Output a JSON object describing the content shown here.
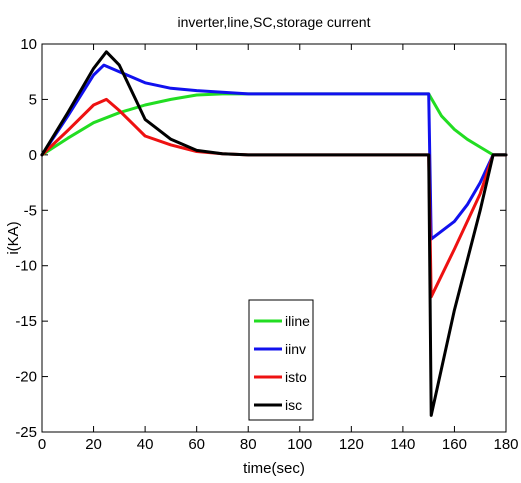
{
  "chart_data": {
    "type": "line",
    "title": "inverter,line,SC,storage current",
    "xlabel": "time(sec)",
    "ylabel": "i(KA)",
    "xlim": [
      0,
      180
    ],
    "ylim": [
      -25,
      10
    ],
    "xticks": [
      0,
      20,
      40,
      60,
      80,
      100,
      120,
      140,
      160,
      180
    ],
    "yticks": [
      10,
      5,
      0,
      -5,
      -10,
      -15,
      -20,
      -25
    ],
    "grid": false,
    "legend_position": "lower-center",
    "series": [
      {
        "name": "iline",
        "color": "#22dd22",
        "x": [
          0,
          10,
          20,
          30,
          40,
          50,
          60,
          70,
          80,
          100,
          120,
          140,
          150,
          155,
          160,
          165,
          170,
          175,
          180
        ],
        "y": [
          0,
          1.5,
          2.9,
          3.8,
          4.5,
          5.0,
          5.4,
          5.5,
          5.5,
          5.5,
          5.5,
          5.5,
          5.5,
          3.5,
          2.3,
          1.4,
          0.7,
          0,
          0
        ]
      },
      {
        "name": "iinv",
        "color": "#1111ee",
        "x": [
          0,
          10,
          20,
          24,
          30,
          40,
          50,
          60,
          80,
          100,
          120,
          140,
          150,
          151,
          160,
          165,
          170,
          175,
          180
        ],
        "y": [
          0,
          3.5,
          7.2,
          8.1,
          7.5,
          6.5,
          6.0,
          5.8,
          5.5,
          5.5,
          5.5,
          5.5,
          5.5,
          -7.6,
          -6.0,
          -4.5,
          -2.5,
          0,
          0
        ]
      },
      {
        "name": "isto",
        "color": "#ee1111",
        "x": [
          0,
          10,
          20,
          25,
          30,
          40,
          50,
          60,
          70,
          80,
          100,
          120,
          140,
          150,
          151,
          160,
          170,
          175,
          180
        ],
        "y": [
          0,
          2.2,
          4.5,
          5.0,
          4.0,
          1.7,
          0.9,
          0.3,
          0.1,
          0,
          0,
          0,
          0,
          0,
          -12.8,
          -8.5,
          -3.5,
          0,
          0
        ]
      },
      {
        "name": "isc",
        "color": "#000000",
        "x": [
          0,
          10,
          20,
          25,
          30,
          40,
          50,
          60,
          70,
          80,
          100,
          120,
          140,
          150,
          151,
          160,
          170,
          175,
          180
        ],
        "y": [
          0,
          3.8,
          7.8,
          9.3,
          8.1,
          3.2,
          1.4,
          0.4,
          0.1,
          0,
          0,
          0,
          0,
          0,
          -23.5,
          -14.0,
          -5.0,
          0,
          0
        ]
      }
    ]
  }
}
